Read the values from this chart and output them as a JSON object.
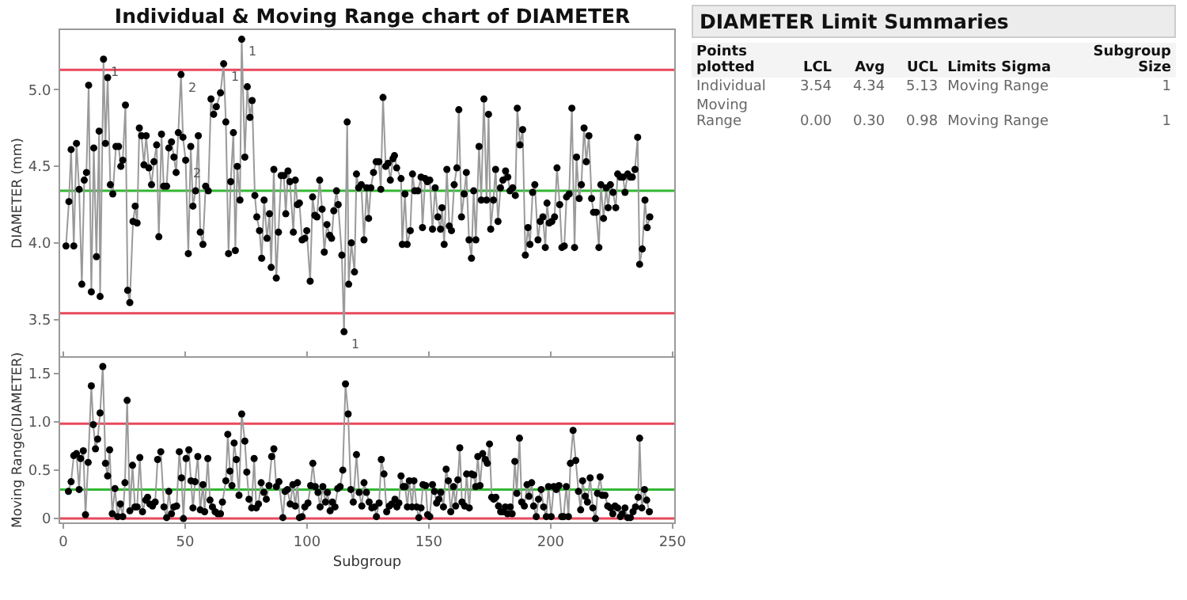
{
  "chart_data": [
    {
      "type": "line",
      "title": "Individual & Moving Range chart of DIAMETER",
      "ylabel": "DIAMETER (mm)",
      "xlim": [
        -1.3,
        250.7
      ],
      "xticks": [
        0,
        50,
        100,
        150,
        200,
        250
      ],
      "ylim": [
        3.26,
        5.39
      ],
      "yticks": [
        3.5,
        {
          "value": 4,
          "label": "4.0"
        },
        4.5,
        {
          "value": 5,
          "label": "5.0"
        }
      ],
      "tick_labels": "y",
      "marker": "circle",
      "line_style": "solid",
      "series": [
        {
          "color": "#000000",
          "x": [
            1.1,
            2.3,
            3.2,
            4.3,
            5.4,
            6.5,
            7.6,
            8.6,
            9.5,
            10.4,
            11.5,
            12.5,
            13.6,
            14.7,
            15.1,
            16.5,
            17.3,
            18.2,
            19.3,
            20.3,
            21.6,
            22.7,
            23.6,
            24.4,
            25.5,
            26.4,
            27.3,
            28.6,
            29.5,
            30.3,
            31.2,
            32.1,
            33.1,
            34.0,
            35.1,
            36.2,
            37.2,
            38.3,
            39.2,
            40.3,
            41.2,
            42.4,
            43.3,
            44.4,
            45.4,
            46.3,
            47.2,
            48.3,
            49.1,
            50.2,
            51.3,
            52.3,
            53.2,
            54.3,
            55.4,
            56.2,
            57.3,
            58.4,
            59.5,
            60.6,
            61.7,
            62.8,
            64.5,
            65.8,
            66.7,
            67.8,
            68.7,
            69.8,
            70.6,
            71.4,
            72.5,
            73.2,
            74.5,
            75.5,
            76.6,
            77.5,
            78.6,
            79.4,
            80.5,
            81.4,
            82.4,
            83.6,
            84.6,
            85.3,
            86.4,
            87.4,
            88.3,
            89.4,
            90.5,
            91.3,
            92.2,
            93.0,
            94.4,
            95.2,
            96.1,
            96.9,
            98.0,
            99.1,
            99.9,
            101.3,
            102.3,
            103.2,
            104.1,
            105.2,
            106.2,
            107.1,
            108.2,
            109.3,
            110.1,
            111.0,
            112.1,
            112.8,
            114.3,
            115.2,
            116.5,
            117.1,
            118.2,
            119.5,
            120.3,
            121.2,
            122.3,
            123.4,
            124.5,
            125.3,
            126.2,
            127.3,
            128.4,
            129.5,
            130.3,
            131.2,
            132.3,
            133.3,
            134.2,
            135.3,
            135.9,
            136.8,
            138.6,
            139.1,
            140.2,
            141.1,
            142.4,
            143.3,
            144.2,
            145.5,
            146.8,
            147.4,
            148.5,
            149.4,
            150.4,
            151.5,
            152.6,
            153.7,
            154.8,
            155.4,
            156.3,
            157.4,
            158.4,
            159.3,
            160.4,
            161.5,
            162.3,
            163.4,
            164.5,
            165.4,
            166.5,
            167.5,
            168.4,
            169.3,
            170.6,
            171.5,
            172.6,
            173.7,
            174.5,
            175.4,
            176.5,
            177.4,
            178.4,
            179.4,
            180.4,
            181.5,
            182.4,
            183.3,
            184.4,
            185.5,
            186.3,
            187.4,
            188.5,
            189.6,
            190.7,
            191.5,
            192.6,
            193.5,
            194.8,
            195.7,
            196.8,
            197.8,
            198.5,
            199.4,
            200.5,
            201.6,
            202.6,
            203.7,
            204.6,
            205.6,
            206.5,
            207.6,
            208.7,
            209.8,
            210.6,
            211.7,
            212.6,
            213.7,
            214.6,
            215.7,
            216.8,
            217.6,
            218.7,
            219.8,
            220.6,
            221.7,
            222.8,
            223.6,
            224.5,
            225.6,
            226.7,
            227.5,
            228.6,
            229.7,
            230.5,
            231.6,
            232.7,
            233.5,
            234.6,
            235.7,
            236.5,
            237.6,
            238.7,
            239.6,
            240.7
          ],
          "values": [
            3.98,
            4.27,
            4.61,
            3.98,
            4.65,
            4.35,
            3.73,
            4.41,
            4.46,
            5.03,
            3.68,
            4.62,
            3.91,
            4.73,
            3.65,
            5.2,
            4.65,
            5.08,
            4.38,
            4.32,
            4.63,
            4.63,
            4.5,
            4.54,
            4.9,
            3.69,
            3.61,
            4.14,
            4.24,
            4.13,
            4.75,
            4.7,
            4.51,
            4.7,
            4.49,
            4.38,
            4.53,
            4.64,
            4.04,
            4.71,
            4.37,
            4.37,
            4.62,
            4.66,
            4.56,
            4.46,
            4.72,
            5.1,
            4.69,
            4.54,
            3.93,
            4.63,
            4.24,
            4.34,
            4.7,
            4.07,
            3.99,
            4.37,
            4.34,
            4.94,
            4.84,
            4.89,
            4.98,
            5.17,
            4.79,
            3.93,
            4.4,
            4.72,
            3.95,
            4.5,
            4.28,
            5.33,
            4.56,
            5.02,
            4.82,
            4.93,
            4.31,
            4.17,
            4.08,
            3.9,
            4.28,
            4.03,
            4.19,
            3.84,
            4.48,
            3.77,
            4.07,
            4.44,
            4.44,
            4.19,
            4.47,
            4.4,
            4.07,
            4.41,
            4.25,
            4.26,
            4.02,
            4.03,
            4.08,
            3.75,
            4.3,
            4.18,
            4.17,
            4.41,
            4.22,
            3.94,
            4.12,
            4.05,
            4.03,
            4.21,
            4.34,
            4.25,
            3.92,
            3.42,
            4.79,
            3.73,
            4.0,
            3.81,
            4.45,
            4.36,
            4.38,
            4.02,
            4.36,
            4.16,
            4.36,
            4.46,
            4.53,
            4.53,
            4.35,
            4.95,
            4.5,
            4.52,
            4.41,
            4.55,
            4.57,
            4.49,
            4.42,
            3.99,
            4.32,
            3.99,
            4.08,
            4.45,
            4.34,
            4.34,
            4.43,
            4.1,
            4.42,
            4.4,
            4.41,
            4.09,
            4.36,
            4.17,
            4.09,
            4.23,
            3.99,
            4.48,
            4.11,
            4.08,
            4.38,
            4.49,
            4.87,
            4.17,
            4.32,
            4.46,
            4.02,
            3.9,
            4.34,
            4.02,
            4.63,
            4.28,
            4.94,
            4.28,
            4.84,
            4.09,
            4.28,
            4.48,
            4.14,
            4.36,
            4.41,
            4.47,
            4.43,
            4.34,
            4.36,
            4.31,
            4.88,
            4.64,
            4.74,
            3.92,
            4.1,
            3.99,
            4.33,
            4.38,
            4.02,
            4.14,
            4.17,
            3.97,
            4.26,
            4.13,
            4.14,
            4.17,
            4.49,
            4.25,
            3.97,
            3.98,
            4.3,
            4.32,
            4.88,
            3.97,
            4.56,
            4.29,
            4.38,
            4.75,
            4.53,
            4.7,
            4.29,
            4.2,
            4.2,
            3.97,
            4.38,
            4.16,
            4.36,
            4.23,
            4.38,
            4.33,
            4.23,
            4.45,
            4.43,
            4.43,
            4.33,
            4.45,
            4.43,
            4.43,
            4.48,
            4.69,
            3.86,
            3.96,
            4.28,
            4.1,
            4.17
          ]
        }
      ],
      "ref_lines": [
        {
          "axis": "y",
          "value": 5.13,
          "color": "#e8485c"
        },
        {
          "axis": "y",
          "value": 4.34,
          "color": "#33b833"
        },
        {
          "axis": "y",
          "value": 3.54,
          "color": "#e8485c"
        }
      ],
      "annotations": [
        {
          "text": "1",
          "x": 16.5,
          "y": 5.2
        },
        {
          "text": "2",
          "x": 48.3,
          "y": 5.1
        },
        {
          "text": "2",
          "x": 50.2,
          "y": 4.54
        },
        {
          "text": "1",
          "x": 65.8,
          "y": 5.17
        },
        {
          "text": "1",
          "x": 73.2,
          "y": 5.33
        },
        {
          "text": "1",
          "x": 115.2,
          "y": 3.42
        }
      ]
    },
    {
      "type": "line",
      "xlabel": "Subgroup",
      "ylabel": "Moving Range(DIAMETER)",
      "xlim": [
        -1.3,
        250.7
      ],
      "xticks": [
        0,
        50,
        100,
        150,
        200,
        250
      ],
      "ylim": [
        -0.04,
        1.66
      ],
      "yticks": [
        0,
        0.5,
        {
          "value": 1,
          "label": "1.0"
        },
        1.5
      ],
      "marker": "circle",
      "line_style": "solid",
      "series": [
        {
          "color": "#000000",
          "x": [
            2.1,
            3.2,
            4.3,
            5.4,
            6.5,
            7.1,
            8.2,
            9.1,
            10.2,
            11.5,
            12.3,
            13.2,
            14.1,
            15.1,
            16.2,
            17.3,
            18.2,
            19.0,
            20.1,
            21.2,
            22.3,
            23.4,
            24.4,
            25.3,
            26.2,
            27.3,
            28.4,
            29.4,
            30.3,
            31.4,
            32.5,
            33.8,
            34.6,
            35.5,
            36.6,
            37.7,
            38.7,
            40.0,
            41.3,
            42.4,
            43.3,
            44.4,
            45.4,
            46.5,
            47.6,
            48.5,
            49.3,
            50.4,
            51.5,
            52.4,
            53.2,
            54.1,
            55.2,
            56.2,
            57.3,
            58.0,
            59.3,
            60.2,
            61.2,
            62.3,
            63.4,
            64.5,
            65.3,
            66.7,
            67.5,
            68.4,
            69.2,
            70.1,
            71.0,
            72.1,
            73.2,
            74.5,
            75.3,
            76.2,
            77.3,
            78.3,
            79.2,
            80.1,
            81.2,
            82.3,
            83.3,
            84.4,
            85.5,
            86.4,
            87.4,
            88.5,
            90.1,
            91.0,
            92.0,
            93.1,
            94.2,
            95.2,
            96.1,
            96.9,
            98.0,
            99.1,
            100.4,
            101.5,
            102.4,
            103.4,
            104.5,
            105.4,
            106.5,
            107.6,
            108.4,
            109.5,
            110.4,
            111.5,
            112.6,
            113.6,
            114.7,
            115.8,
            116.9,
            118.0,
            119.0,
            120.3,
            121.4,
            122.5,
            123.4,
            124.4,
            125.5,
            126.6,
            127.7,
            128.5,
            129.6,
            130.5,
            131.6,
            132.7,
            133.8,
            134.8,
            136.1,
            136.9,
            137.7,
            138.6,
            139.5,
            140.3,
            141.2,
            142.0,
            143.1,
            143.9,
            145.0,
            145.9,
            146.8,
            147.6,
            148.7,
            149.5,
            150.4,
            151.5,
            152.3,
            153.2,
            154.1,
            154.9,
            156.0,
            157.1,
            158.0,
            159.0,
            160.1,
            161.0,
            161.9,
            162.7,
            163.6,
            164.7,
            165.5,
            166.6,
            167.5,
            168.4,
            169.2,
            170.1,
            171.0,
            172.1,
            173.2,
            174.0,
            174.9,
            175.8,
            176.6,
            177.5,
            178.6,
            179.5,
            180.5,
            181.4,
            182.3,
            183.4,
            184.2,
            185.3,
            186.1,
            187.2,
            188.1,
            189.2,
            190.3,
            191.1,
            192.2,
            193.0,
            194.1,
            195.0,
            196.1,
            197.1,
            198.2,
            199.1,
            200.2,
            201.3,
            202.3,
            203.4,
            204.5,
            205.3,
            206.4,
            207.3,
            208.1,
            209.2,
            210.3,
            211.4,
            212.3,
            213.1,
            214.2,
            215.1,
            216.2,
            217.3,
            218.4,
            219.2,
            220.3,
            221.2,
            222.3,
            223.4,
            224.5,
            225.5,
            226.4,
            227.5,
            228.6,
            229.4,
            230.5,
            231.6,
            232.7,
            233.8,
            234.8,
            235.9,
            236.5,
            237.4,
            238.5,
            239.4,
            240.5
          ],
          "values": [
            0.28,
            0.38,
            0.65,
            0.67,
            0.3,
            0.62,
            0.7,
            0.04,
            0.58,
            1.37,
            0.97,
            0.72,
            0.82,
            1.09,
            1.57,
            0.57,
            0.44,
            0.71,
            0.05,
            0.31,
            0.02,
            0.15,
            0.02,
            0.37,
            1.22,
            0.08,
            0.55,
            0.12,
            0.12,
            0.63,
            0.07,
            0.19,
            0.22,
            0.15,
            0.13,
            0.17,
            0.61,
            0.69,
            0.12,
            0.01,
            0.28,
            0.05,
            0.12,
            0.13,
            0.69,
            0.42,
            0.0,
            0.62,
            0.71,
            0.39,
            0.11,
            0.38,
            0.64,
            0.09,
            0.35,
            0.07,
            0.62,
            0.19,
            0.12,
            0.07,
            0.05,
            0.05,
            0.17,
            0.39,
            0.87,
            0.49,
            0.34,
            0.78,
            0.61,
            0.24,
            1.08,
            0.8,
            0.48,
            0.2,
            0.11,
            0.62,
            0.11,
            0.15,
            0.37,
            0.27,
            0.2,
            0.34,
            0.64,
            0.72,
            0.33,
            0.38,
            0.01,
            0.28,
            0.3,
            0.15,
            0.35,
            0.13,
            0.37,
            0.01,
            0.02,
            0.12,
            0.16,
            0.34,
            0.57,
            0.33,
            0.27,
            0.12,
            0.33,
            0.17,
            0.27,
            0.08,
            0.17,
            0.12,
            0.31,
            0.33,
            0.5,
            1.39,
            1.08,
            0.3,
            0.17,
            0.66,
            0.27,
            0.13,
            0.37,
            0.27,
            0.17,
            0.11,
            0.12,
            0.02,
            0.16,
            0.61,
            0.46,
            0.07,
            0.13,
            0.15,
            0.2,
            0.12,
            0.16,
            0.44,
            0.33,
            0.33,
            0.12,
            0.39,
            0.12,
            0.39,
            0.12,
            0.01,
            0.11,
            0.35,
            0.34,
            0.04,
            0.02,
            0.35,
            0.28,
            0.16,
            0.2,
            0.27,
            0.12,
            0.51,
            0.39,
            0.07,
            0.33,
            0.13,
            0.4,
            0.73,
            0.17,
            0.13,
            0.46,
            0.11,
            0.46,
            0.45,
            0.33,
            0.64,
            0.34,
            0.67,
            0.61,
            0.57,
            0.77,
            0.22,
            0.2,
            0.22,
            0.13,
            0.07,
            0.07,
            0.12,
            0.05,
            0.12,
            0.05,
            0.59,
            0.26,
            0.83,
            0.17,
            0.13,
            0.35,
            0.23,
            0.37,
            0.13,
            0.02,
            0.2,
            0.3,
            0.12,
            0.02,
            0.33,
            0.02,
            0.33,
            0.3,
            0.34,
            0.02,
            0.02,
            0.33,
            0.02,
            0.57,
            0.91,
            0.6,
            0.28,
            0.09,
            0.39,
            0.23,
            0.17,
            0.42,
            0.11,
            0.0,
            0.26,
            0.43,
            0.24,
            0.24,
            0.13,
            0.11,
            0.05,
            0.13,
            0.11,
            0.02,
            0.05,
            0.11,
            0.01,
            0.01,
            0.07,
            0.12,
            0.22,
            0.83,
            0.11,
            0.3,
            0.19,
            0.07
          ]
        }
      ],
      "ref_lines": [
        {
          "axis": "y",
          "value": 0.98,
          "color": "#e8485c"
        },
        {
          "axis": "y",
          "value": 0.3,
          "color": "#33b833"
        },
        {
          "axis": "y",
          "value": 0,
          "color": "#e8485c"
        }
      ]
    },
    {
      "type": "other",
      "title": "DIAMETER Limit Summaries",
      "annotations": [
        "Points plotted",
        "LCL",
        "Avg",
        "UCL",
        "Limits Sigma",
        "Subgroup Size",
        "Individual",
        "3.54",
        "4.34",
        "5.13",
        "Moving Range",
        "1",
        "Moving Range",
        "0.00",
        "0.30",
        "0.98",
        "Moving Range",
        "1"
      ]
    }
  ]
}
